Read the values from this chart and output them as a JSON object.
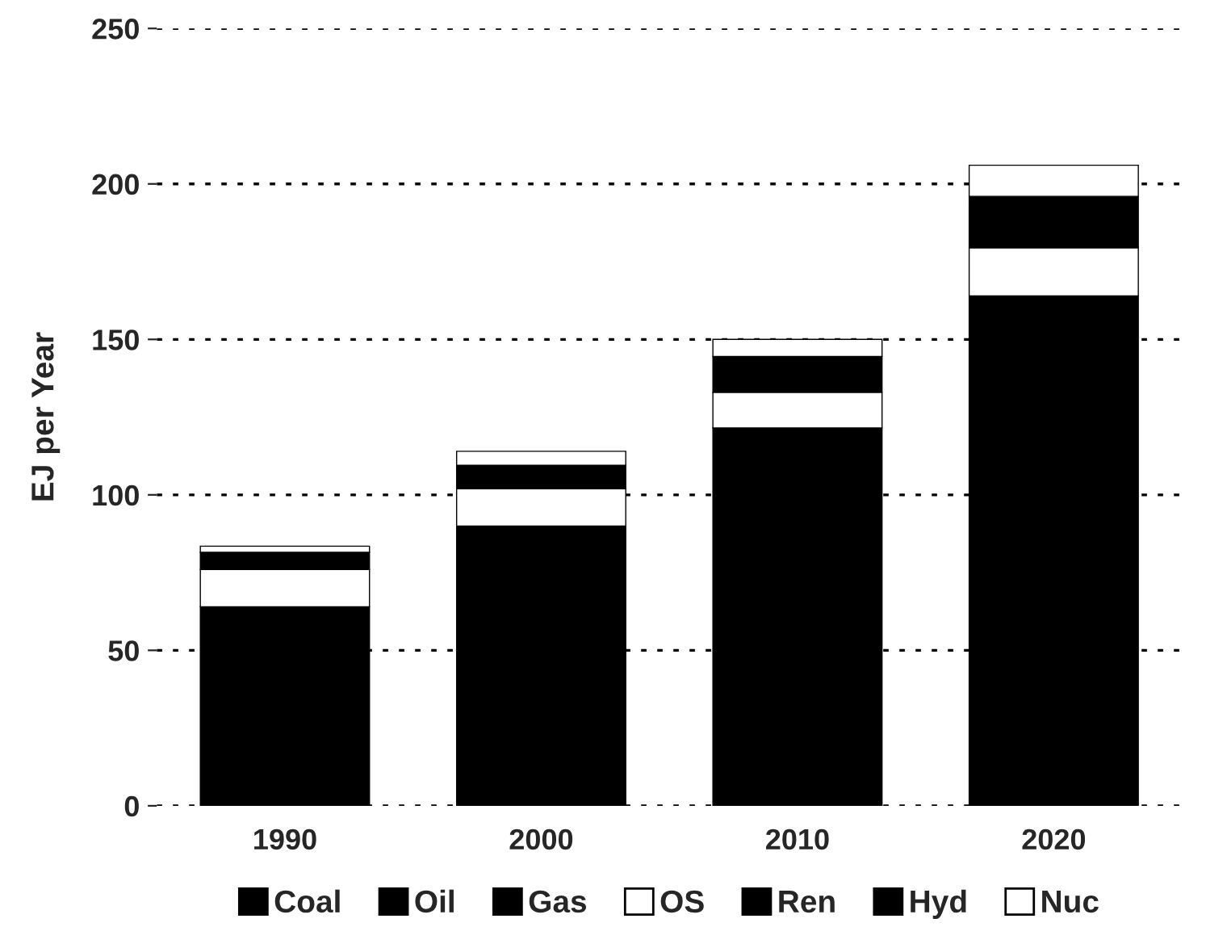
{
  "chart_data": {
    "type": "bar",
    "stacked": true,
    "ylabel": "EJ per Year",
    "categories": [
      "1990",
      "2000",
      "2010",
      "2020"
    ],
    "series": [
      {
        "name": "Coal",
        "color": "#000000",
        "values": [
          64,
          90,
          121.5,
          164
        ]
      },
      {
        "name": "Oil",
        "color": "#000000",
        "values": [
          0,
          0,
          0,
          0
        ]
      },
      {
        "name": "Gas",
        "color": "#000000",
        "values": [
          0,
          0,
          0,
          0
        ]
      },
      {
        "name": "OS",
        "color": "#ffffff",
        "values": [
          12,
          12,
          11.5,
          15.5
        ]
      },
      {
        "name": "Ren",
        "color": "#000000",
        "values": [
          5.5,
          7.5,
          11.5,
          16.5
        ]
      },
      {
        "name": "Hyd",
        "color": "#000000",
        "values": [
          0,
          0,
          0,
          0
        ]
      },
      {
        "name": "Nuc",
        "color": "#ffffff",
        "values": [
          2,
          4.5,
          5.5,
          10
        ]
      }
    ],
    "ylim": [
      0,
      250
    ],
    "yticks": [
      0,
      50,
      100,
      150,
      200,
      250
    ],
    "grid": "y",
    "legend": "bottom"
  }
}
